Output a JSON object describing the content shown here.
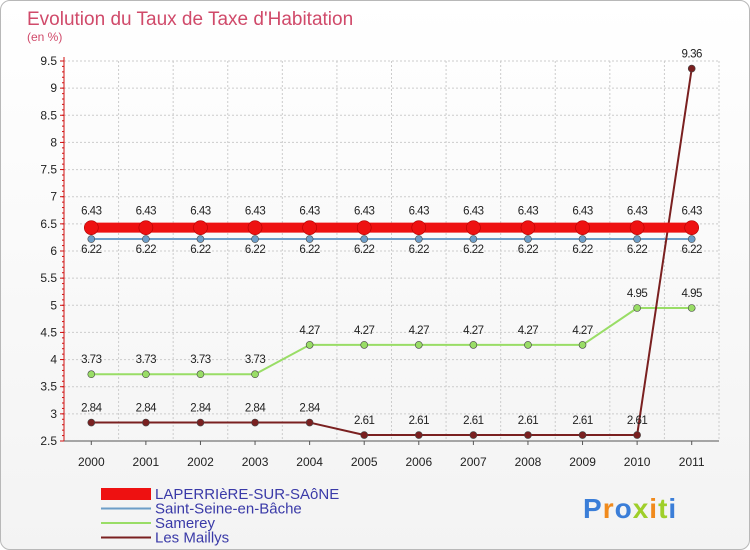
{
  "chart_data": {
    "type": "line",
    "title": "Evolution du Taux de Taxe d'Habitation",
    "subtitle": "(en %)",
    "x": [
      "2000",
      "2001",
      "2002",
      "2003",
      "2004",
      "2005",
      "2006",
      "2007",
      "2008",
      "2009",
      "2010",
      "2011"
    ],
    "ylim": [
      2.5,
      9.5
    ],
    "yticks": [
      "2.5",
      "3",
      "3.5",
      "4",
      "4.5",
      "5",
      "5.5",
      "6",
      "6.5",
      "7",
      "7.5",
      "8",
      "8.5",
      "9",
      "9.5"
    ],
    "series": [
      {
        "name": "LAPERRIèRE-SUR-SAôNE",
        "color": "#ee1111",
        "values": [
          6.43,
          6.43,
          6.43,
          6.43,
          6.43,
          6.43,
          6.43,
          6.43,
          6.43,
          6.43,
          6.43,
          6.43
        ],
        "labels": [
          "6.43",
          "6.43",
          "6.43",
          "6.43",
          "6.43",
          "6.43",
          "6.43",
          "6.43",
          "6.43",
          "6.43",
          "6.43",
          "6.43"
        ]
      },
      {
        "name": "Saint-Seine-en-Bâche",
        "color": "#6d9ec8",
        "values": [
          6.22,
          6.22,
          6.22,
          6.22,
          6.22,
          6.22,
          6.22,
          6.22,
          6.22,
          6.22,
          6.22,
          6.22
        ],
        "labels": [
          "6.22",
          "6.22",
          "6.22",
          "6.22",
          "6.22",
          "6.22",
          "6.22",
          "6.22",
          "6.22",
          "6.22",
          "6.22",
          "6.22"
        ]
      },
      {
        "name": "Samerey",
        "color": "#99dd66",
        "values": [
          3.73,
          3.73,
          3.73,
          3.73,
          4.27,
          4.27,
          4.27,
          4.27,
          4.27,
          4.27,
          4.95,
          4.95
        ],
        "labels": [
          "3.73",
          "3.73",
          "3.73",
          "3.73",
          "4.27",
          "4.27",
          "4.27",
          "4.27",
          "4.27",
          "4.27",
          "4.95",
          "4.95"
        ]
      },
      {
        "name": "Les Maillys",
        "color": "#7a2020",
        "values": [
          2.84,
          2.84,
          2.84,
          2.84,
          2.84,
          2.61,
          2.61,
          2.61,
          2.61,
          2.61,
          2.61,
          9.36
        ],
        "labels": [
          "2.84",
          "2.84",
          "2.84",
          "2.84",
          "2.84",
          "2.61",
          "2.61",
          "2.61",
          "2.61",
          "2.61",
          "2.61",
          "9.36"
        ]
      }
    ]
  },
  "brand": {
    "text": "Proxiti"
  }
}
